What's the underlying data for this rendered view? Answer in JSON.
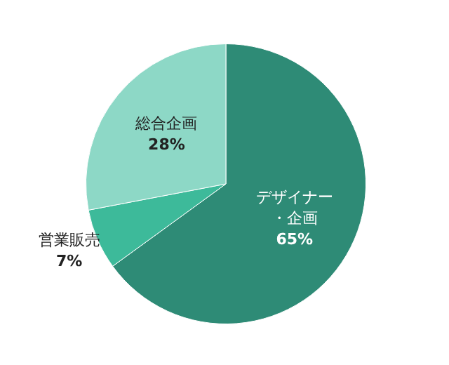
{
  "chart_data": {
    "type": "pie",
    "categories": [
      "デザイナー・企画",
      "営業販売",
      "総合企画"
    ],
    "values": [
      65,
      7,
      28
    ],
    "colors": [
      "#2e8b76",
      "#3dba9a",
      "#8dd8c6"
    ],
    "value_labels": [
      "65%",
      "7%",
      "28%"
    ],
    "legend": false
  }
}
